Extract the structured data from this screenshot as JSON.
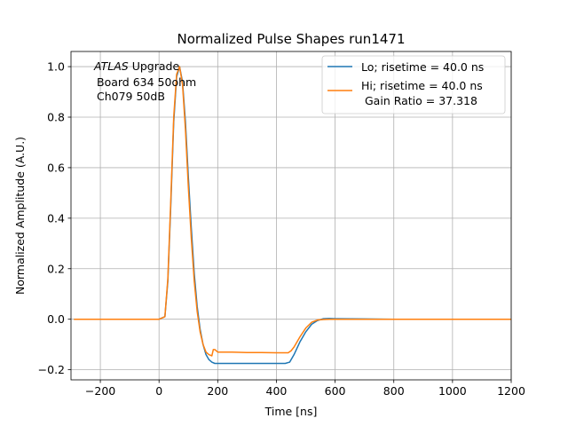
{
  "chart_data": {
    "type": "line",
    "title": "Normalized Pulse Shapes run1471",
    "xlabel": "Time [ns]",
    "ylabel": "Normalized Amplitude (A.U.)",
    "xlim": [
      -300,
      1200
    ],
    "ylim": [
      -0.24,
      1.06
    ],
    "xticks": [
      -200,
      0,
      200,
      400,
      600,
      800,
      1000,
      1200
    ],
    "yticks": [
      -0.2,
      0.0,
      0.2,
      0.4,
      0.6,
      0.8,
      1.0
    ],
    "xtick_labels": [
      "−200",
      "0",
      "200",
      "400",
      "600",
      "800",
      "1000",
      "1200"
    ],
    "ytick_labels": [
      "−0.2",
      "0.0",
      "0.2",
      "0.4",
      "0.6",
      "0.8",
      "1.0"
    ],
    "grid": true,
    "legend_position": "top-right",
    "annotation": {
      "atlas": "ATLAS",
      "line1_rest": " Upgrade",
      "line2": "Board 634 50ohm",
      "line3": "Ch079 50dB"
    },
    "series": [
      {
        "name": "Lo; risetime = 40.0 ns",
        "color": "#1f77b4",
        "x": [
          -290,
          -100,
          0,
          20,
          30,
          40,
          50,
          60,
          70,
          80,
          90,
          100,
          110,
          120,
          130,
          140,
          150,
          160,
          170,
          180,
          190,
          200,
          220,
          250,
          300,
          350,
          400,
          430,
          445,
          460,
          480,
          500,
          520,
          540,
          560,
          580,
          600,
          700,
          800,
          900,
          1000,
          1100,
          1200
        ],
        "y": [
          0.0,
          0.0,
          0.0,
          0.01,
          0.15,
          0.45,
          0.78,
          0.96,
          1.0,
          0.94,
          0.78,
          0.56,
          0.36,
          0.18,
          0.05,
          -0.04,
          -0.1,
          -0.14,
          -0.16,
          -0.17,
          -0.175,
          -0.175,
          -0.175,
          -0.175,
          -0.175,
          -0.175,
          -0.175,
          -0.175,
          -0.17,
          -0.14,
          -0.09,
          -0.05,
          -0.02,
          -0.005,
          0.002,
          0.003,
          0.002,
          0.001,
          0.0,
          0.0,
          0.0,
          0.0,
          0.0
        ]
      },
      {
        "name": "Hi; risetime = 40.0 ns",
        "name_line2": "Gain Ratio = 37.318",
        "color": "#ff7f0e",
        "x": [
          -290,
          -100,
          0,
          20,
          30,
          40,
          50,
          60,
          70,
          80,
          90,
          100,
          110,
          120,
          130,
          140,
          150,
          160,
          170,
          180,
          185,
          190,
          200,
          220,
          250,
          300,
          350,
          400,
          440,
          450,
          460,
          480,
          500,
          520,
          540,
          560,
          580,
          600,
          700,
          800,
          900,
          1000,
          1100,
          1200
        ],
        "y": [
          0.0,
          0.0,
          0.0,
          0.01,
          0.16,
          0.47,
          0.8,
          0.97,
          1.0,
          0.93,
          0.75,
          0.52,
          0.32,
          0.15,
          0.03,
          -0.05,
          -0.1,
          -0.13,
          -0.14,
          -0.145,
          -0.12,
          -0.12,
          -0.13,
          -0.13,
          -0.13,
          -0.132,
          -0.132,
          -0.133,
          -0.133,
          -0.125,
          -0.11,
          -0.07,
          -0.035,
          -0.012,
          -0.003,
          -0.001,
          0.0,
          0.0,
          0.0,
          0.0,
          0.0,
          0.0,
          0.0,
          0.0
        ]
      }
    ]
  }
}
